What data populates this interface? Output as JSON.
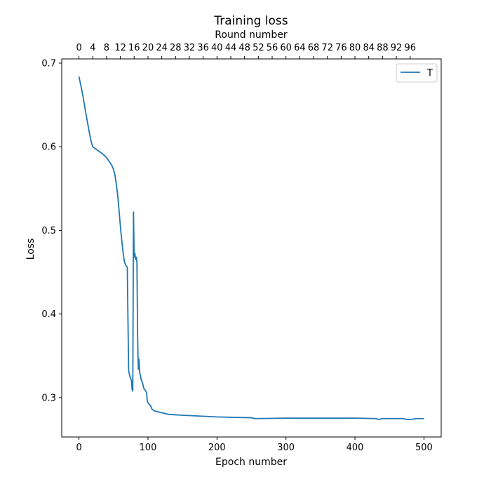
{
  "chart_data": {
    "type": "line",
    "title": "Training loss",
    "xlabel": "Epoch number",
    "ylabel": "Loss",
    "top_xlabel": "Round number",
    "xlim": [
      -25,
      525
    ],
    "ylim": [
      0.253,
      0.705
    ],
    "x_ticks": [
      0,
      100,
      200,
      300,
      400,
      500
    ],
    "x_tick_labels": [
      "0",
      "100",
      "200",
      "300",
      "400",
      "500"
    ],
    "y_ticks": [
      0.3,
      0.4,
      0.5,
      0.6,
      0.7
    ],
    "y_tick_labels": [
      "0.3",
      "0.4",
      "0.5",
      "0.6",
      "0.7"
    ],
    "top_ticks": [
      0,
      4,
      8,
      12,
      16,
      20,
      24,
      28,
      32,
      36,
      40,
      44,
      48,
      52,
      56,
      60,
      64,
      68,
      72,
      76,
      80,
      84,
      88,
      92,
      96
    ],
    "top_tick_labels": [
      "0",
      "4",
      "8",
      "12",
      "16",
      "20",
      "24",
      "28",
      "32",
      "36",
      "40",
      "44",
      "48",
      "52",
      "56",
      "60",
      "64",
      "68",
      "72",
      "76",
      "80",
      "84",
      "88",
      "92",
      "96"
    ],
    "top_epochs_per_round": 5,
    "grid": false,
    "legend_position": "top-right",
    "color": "#1f77b4",
    "series": [
      {
        "name": "T",
        "x": [
          0,
          5,
          10,
          15,
          18,
          20,
          25,
          30,
          35,
          40,
          45,
          48,
          50,
          52,
          54,
          56,
          58,
          60,
          62,
          64,
          66,
          68,
          70,
          72,
          74,
          76,
          77,
          78,
          79,
          80,
          81,
          82,
          83,
          84,
          85,
          86,
          87,
          88,
          89,
          90,
          92,
          94,
          96,
          98,
          99,
          100,
          102,
          104,
          106,
          110,
          115,
          120,
          130,
          150,
          200,
          250,
          255,
          300,
          350,
          400,
          430,
          435,
          440,
          450,
          470,
          475,
          480,
          490,
          500
        ],
        "y": [
          0.684,
          0.664,
          0.64,
          0.617,
          0.605,
          0.6,
          0.597,
          0.594,
          0.591,
          0.587,
          0.581,
          0.577,
          0.573,
          0.567,
          0.556,
          0.543,
          0.525,
          0.505,
          0.488,
          0.473,
          0.462,
          0.458,
          0.456,
          0.332,
          0.325,
          0.321,
          0.31,
          0.308,
          0.522,
          0.468,
          0.473,
          0.465,
          0.468,
          0.462,
          0.373,
          0.334,
          0.346,
          0.33,
          0.327,
          0.322,
          0.318,
          0.311,
          0.309,
          0.306,
          0.296,
          0.294,
          0.292,
          0.29,
          0.286,
          0.284,
          0.283,
          0.282,
          0.28,
          0.279,
          0.277,
          0.276,
          0.275,
          0.2755,
          0.2755,
          0.2755,
          0.275,
          0.274,
          0.275,
          0.275,
          0.275,
          0.274,
          0.274,
          0.275,
          0.275
        ]
      }
    ]
  }
}
